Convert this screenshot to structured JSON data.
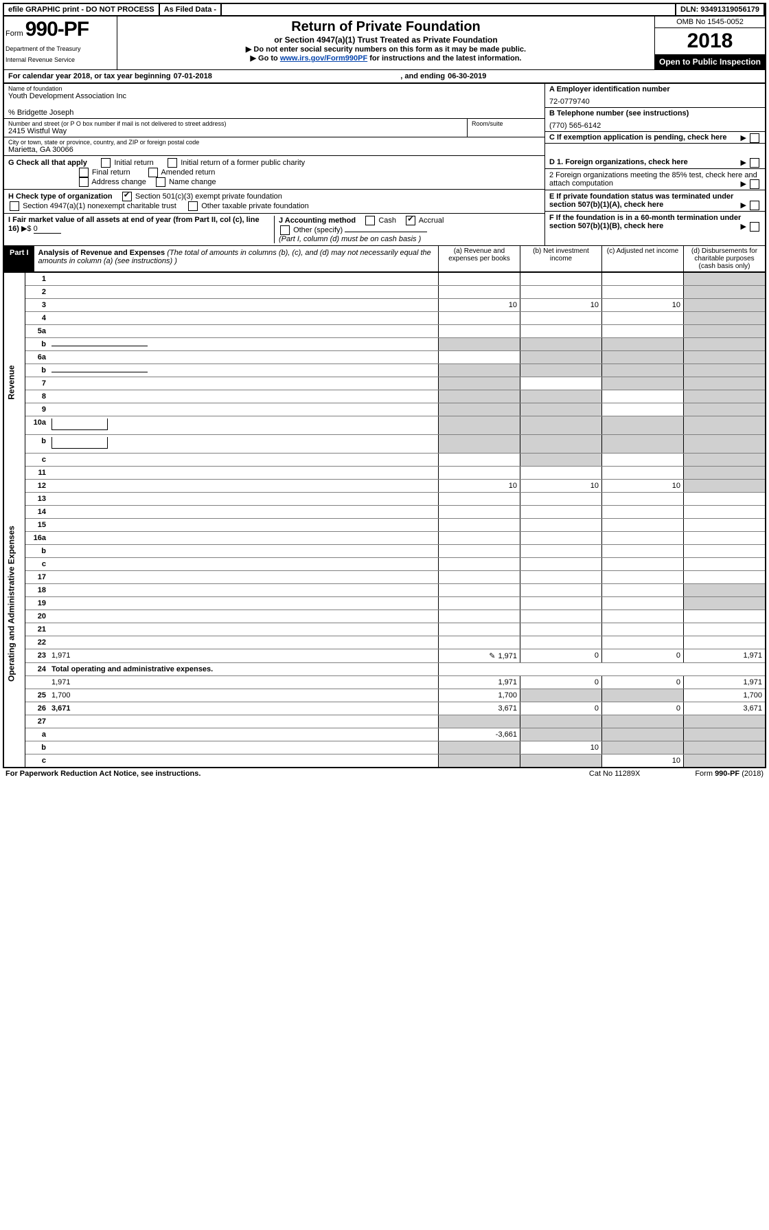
{
  "top": {
    "efile": "efile GRAPHIC print - DO NOT PROCESS",
    "asfiled": "As Filed Data -",
    "dln_label": "DLN:",
    "dln": "93491319056179"
  },
  "header": {
    "form_prefix": "Form",
    "form_no": "990-PF",
    "dept": "Department of the Treasury",
    "irs": "Internal Revenue Service",
    "title": "Return of Private Foundation",
    "subtitle": "or Section 4947(a)(1) Trust Treated as Private Foundation",
    "note1": "Do not enter social security numbers on this form as it may be made public.",
    "note2_pre": "Go to ",
    "note2_link": "www.irs.gov/Form990PF",
    "note2_post": " for instructions and the latest information.",
    "omb": "OMB No 1545-0052",
    "year": "2018",
    "open": "Open to Public Inspection"
  },
  "cal": {
    "text1": "For calendar year 2018, or tax year beginning ",
    "begin": "07-01-2018",
    "text2": ", and ending ",
    "end": "06-30-2019"
  },
  "info": {
    "name_label": "Name of foundation",
    "name": "Youth Development Association Inc",
    "co": "% Bridgette Joseph",
    "addr_label": "Number and street (or P O  box number if mail is not delivered to street address)",
    "addr": "2415 Wistful Way",
    "room_label": "Room/suite",
    "city_label": "City or town, state or province, country, and ZIP or foreign postal code",
    "city": "Marietta, GA  30066",
    "A_label": "A Employer identification number",
    "A": "72-0779740",
    "B_label": "B Telephone number (see instructions)",
    "B": "(770) 565-6142",
    "C": "C If exemption application is pending, check here"
  },
  "checks": {
    "G": "G Check all that apply",
    "G1": "Initial return",
    "G2": "Initial return of a former public charity",
    "G3": "Final return",
    "G4": "Amended return",
    "G5": "Address change",
    "G6": "Name change",
    "H": "H Check type of organization",
    "H1": "Section 501(c)(3) exempt private foundation",
    "H2": "Section 4947(a)(1) nonexempt charitable trust",
    "H3": "Other taxable private foundation",
    "I": "I Fair market value of all assets at end of year (from Part II, col  (c), line 16)",
    "I_val_prefix": "▶$ ",
    "I_val": "0",
    "J": "J Accounting method",
    "J1": "Cash",
    "J2": "Accrual",
    "J3": "Other (specify)",
    "J_note": "(Part I, column (d) must be on cash basis )",
    "D1": "D 1. Foreign organizations, check here",
    "D2": "2 Foreign organizations meeting the 85% test, check here and attach computation",
    "E": "E  If private foundation status was terminated under section 507(b)(1)(A), check here",
    "F": "F  If the foundation is in a 60-month termination under section 507(b)(1)(B), check here"
  },
  "partI": {
    "label": "Part I",
    "title": "Analysis of Revenue and Expenses",
    "title_note": " (The total of amounts in columns (b), (c), and (d) may not necessarily equal the amounts in column (a) (see instructions) )",
    "col_a": "(a)  Revenue and expenses per books",
    "col_b": "(b) Net investment income",
    "col_c": "(c) Adjusted net income",
    "col_d": "(d) Disbursements for charitable purposes (cash basis only)",
    "revenue_label": "Revenue",
    "expenses_label": "Operating and Administrative Expenses",
    "rows": [
      {
        "n": "1",
        "d": "",
        "a": "",
        "b": "",
        "c": "",
        "dshade": true
      },
      {
        "n": "2",
        "d": "",
        "a": "",
        "b": "",
        "c": "",
        "dshade": true,
        "bold_not": true
      },
      {
        "n": "3",
        "d": "",
        "a": "10",
        "b": "10",
        "c": "10",
        "dshade": true
      },
      {
        "n": "4",
        "d": "",
        "a": "",
        "b": "",
        "c": "",
        "dshade": true
      },
      {
        "n": "5a",
        "d": "",
        "a": "",
        "b": "",
        "c": "",
        "dshade": true
      },
      {
        "n": "b",
        "d": "",
        "a": "",
        "b": "",
        "c": "",
        "dshade": true,
        "bshade": true,
        "cshade": true,
        "ashade": true,
        "underline_after": true
      },
      {
        "n": "6a",
        "d": "",
        "a": "",
        "b": "",
        "c": "",
        "dshade": true,
        "bshade": true,
        "cshade": true
      },
      {
        "n": "b",
        "d": "",
        "a": "",
        "b": "",
        "c": "",
        "dshade": true,
        "bshade": true,
        "cshade": true,
        "ashade": true,
        "underline_after": true
      },
      {
        "n": "7",
        "d": "",
        "a": "",
        "b": "",
        "c": "",
        "dshade": true,
        "ashade": true,
        "cshade": true
      },
      {
        "n": "8",
        "d": "",
        "a": "",
        "b": "",
        "c": "",
        "dshade": true,
        "ashade": true,
        "bshade": true
      },
      {
        "n": "9",
        "d": "",
        "a": "",
        "b": "",
        "c": "",
        "dshade": true,
        "ashade": true,
        "bshade": true
      },
      {
        "n": "10a",
        "d": "",
        "a": "",
        "b": "",
        "c": "",
        "dshade": true,
        "bshade": true,
        "cshade": true,
        "ashade": true,
        "box_after": true
      },
      {
        "n": "b",
        "d": "",
        "a": "",
        "b": "",
        "c": "",
        "dshade": true,
        "bshade": true,
        "cshade": true,
        "ashade": true,
        "box_after": true
      },
      {
        "n": "c",
        "d": "",
        "a": "",
        "b": "",
        "c": "",
        "dshade": true,
        "bshade": true
      },
      {
        "n": "11",
        "d": "",
        "a": "",
        "b": "",
        "c": "",
        "dshade": true
      },
      {
        "n": "12",
        "d": "",
        "a": "10",
        "b": "10",
        "c": "10",
        "dshade": true,
        "bold": true
      }
    ],
    "exp_rows": [
      {
        "n": "13",
        "d": "",
        "a": "",
        "b": "",
        "c": ""
      },
      {
        "n": "14",
        "d": "",
        "a": "",
        "b": "",
        "c": ""
      },
      {
        "n": "15",
        "d": "",
        "a": "",
        "b": "",
        "c": ""
      },
      {
        "n": "16a",
        "d": "",
        "a": "",
        "b": "",
        "c": ""
      },
      {
        "n": "b",
        "d": "",
        "a": "",
        "b": "",
        "c": ""
      },
      {
        "n": "c",
        "d": "",
        "a": "",
        "b": "",
        "c": ""
      },
      {
        "n": "17",
        "d": "",
        "a": "",
        "b": "",
        "c": ""
      },
      {
        "n": "18",
        "d": "",
        "a": "",
        "b": "",
        "c": "",
        "dshade": true
      },
      {
        "n": "19",
        "d": "",
        "a": "",
        "b": "",
        "c": "",
        "dshade": true
      },
      {
        "n": "20",
        "d": "",
        "a": "",
        "b": "",
        "c": ""
      },
      {
        "n": "21",
        "d": "",
        "a": "",
        "b": "",
        "c": ""
      },
      {
        "n": "22",
        "d": "",
        "a": "",
        "b": "",
        "c": ""
      },
      {
        "n": "23",
        "d": "1,971",
        "a": "1,971",
        "b": "0",
        "c": "0",
        "pen": true
      },
      {
        "n": "24",
        "d": "Total operating and administrative expenses.",
        "bold": true
      },
      {
        "n": "",
        "d": "1,971",
        "a": "1,971",
        "b": "0",
        "c": "0"
      },
      {
        "n": "25",
        "d": "1,700",
        "a": "1,700",
        "b": "",
        "c": "",
        "bshade": true,
        "cshade": true
      },
      {
        "n": "26",
        "d": "3,671",
        "a": "3,671",
        "b": "0",
        "c": "0",
        "bold": true
      }
    ],
    "bottom_rows": [
      {
        "n": "27",
        "d": "",
        "a": "",
        "b": "",
        "c": "",
        "bshade": true,
        "cshade": true,
        "dshade": true,
        "ashade": true
      },
      {
        "n": "a",
        "d": "",
        "a": "-3,661",
        "b": "",
        "c": "",
        "bold": true,
        "bshade": true,
        "cshade": true,
        "dshade": true
      },
      {
        "n": "b",
        "d": "",
        "a": "",
        "b": "10",
        "c": "",
        "bold": true,
        "ashade": true,
        "cshade": true,
        "dshade": true
      },
      {
        "n": "c",
        "d": "",
        "a": "",
        "b": "",
        "c": "10",
        "bold": true,
        "ashade": true,
        "bshade": true,
        "dshade": true
      }
    ]
  },
  "footer": {
    "left": "For Paperwork Reduction Act Notice, see instructions.",
    "mid": "Cat  No  11289X",
    "right_pre": "Form ",
    "right_bold": "990-PF",
    "right_post": " (2018)"
  }
}
